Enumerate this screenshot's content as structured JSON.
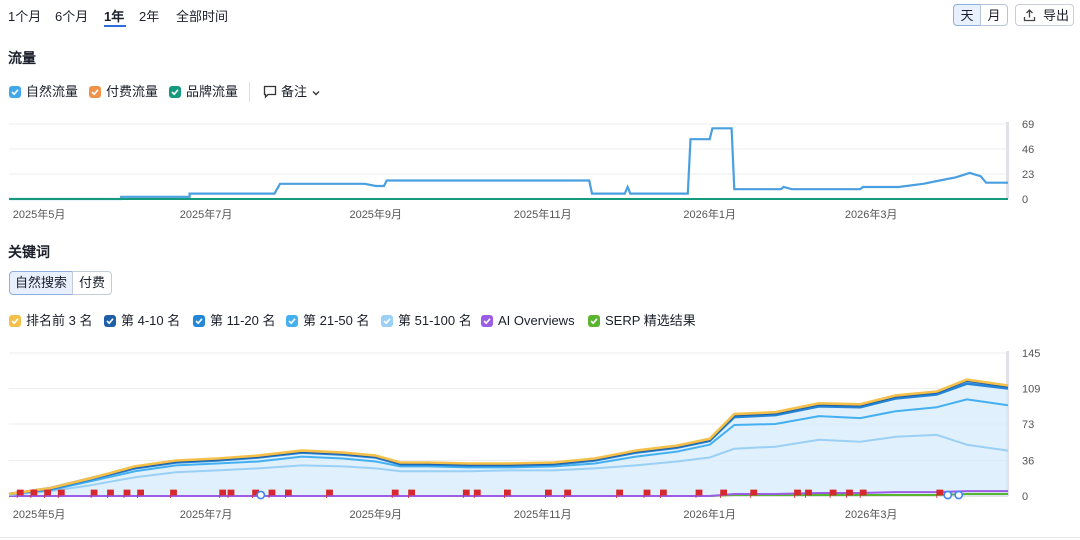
{
  "period_tabs": [
    "1个月",
    "6个月",
    "1年",
    "2年",
    "全部时间"
  ],
  "period_active": "1年",
  "view_toggle": {
    "day": "天",
    "month": "月",
    "active": "天"
  },
  "export_label": "导出",
  "traffic": {
    "title": "流量",
    "legend": [
      {
        "label": "自然流量",
        "color": "#41a9e8",
        "checked": true
      },
      {
        "label": "付费流量",
        "color": "#f0924a",
        "checked": true
      },
      {
        "label": "品牌流量",
        "color": "#169a7e",
        "checked": true
      }
    ],
    "notes_label": "备注",
    "y_ticks": [
      "69",
      "46",
      "23",
      "0"
    ],
    "x_ticks": [
      "2025年5月",
      "2025年7月",
      "2025年9月",
      "2025年11月",
      "2026年1月",
      "2026年3月"
    ]
  },
  "keywords": {
    "title": "关键词",
    "tabs": [
      "自然搜索",
      "付费"
    ],
    "active_tab": "自然搜索",
    "legend": [
      {
        "label": "排名前 3 名",
        "color": "#f5c04a",
        "checked": true
      },
      {
        "label": "第 4-10 名",
        "color": "#1e5fa8",
        "checked": true
      },
      {
        "label": "第 11-20 名",
        "color": "#2585d6",
        "checked": true
      },
      {
        "label": "第 21-50 名",
        "color": "#45b0f0",
        "checked": true
      },
      {
        "label": "第 51-100 名",
        "color": "#9ad0f5",
        "checked": true
      },
      {
        "label": "AI Overviews",
        "color": "#9b5de5",
        "checked": true
      },
      {
        "label": "SERP 精选结果",
        "color": "#5ab52e",
        "checked": true
      }
    ],
    "y_ticks": [
      "145",
      "109",
      "73",
      "36",
      "0"
    ],
    "x_ticks": [
      "2025年5月",
      "2025年7月",
      "2025年9月",
      "2025年11月",
      "2026年1月",
      "2026年3月"
    ]
  },
  "chart_data": [
    {
      "type": "line",
      "title": "流量",
      "x_unit": "date",
      "x_range": [
        "2025-04-20",
        "2026-04-20"
      ],
      "ylim": [
        0,
        69
      ],
      "grid": true,
      "series": [
        {
          "name": "自然流量",
          "color": "#4a9fe0",
          "points": [
            [
              "2025-04-20",
              0
            ],
            [
              "2025-05-31",
              0
            ],
            [
              "2025-05-31",
              2
            ],
            [
              "2025-06-25",
              2
            ],
            [
              "2025-06-25",
              5
            ],
            [
              "2025-07-26",
              5
            ],
            [
              "2025-07-28",
              14
            ],
            [
              "2025-08-28",
              14
            ],
            [
              "2025-09-01",
              12
            ],
            [
              "2025-09-04",
              12
            ],
            [
              "2025-09-05",
              17
            ],
            [
              "2025-11-18",
              17
            ],
            [
              "2025-11-19",
              5
            ],
            [
              "2025-12-01",
              5
            ],
            [
              "2025-12-02",
              11
            ],
            [
              "2025-12-03",
              5
            ],
            [
              "2025-12-24",
              5
            ],
            [
              "2025-12-25",
              55
            ],
            [
              "2026-01-01",
              55
            ],
            [
              "2026-01-02",
              65
            ],
            [
              "2026-01-09",
              65
            ],
            [
              "2026-01-10",
              9
            ],
            [
              "2026-01-27",
              9
            ],
            [
              "2026-01-28",
              11
            ],
            [
              "2026-01-31",
              9
            ],
            [
              "2026-02-25",
              9
            ],
            [
              "2026-02-26",
              11
            ],
            [
              "2026-03-11",
              11
            ],
            [
              "2026-03-20",
              14
            ],
            [
              "2026-03-26",
              17
            ],
            [
              "2026-04-01",
              20
            ],
            [
              "2026-04-06",
              24
            ],
            [
              "2026-04-10",
              21
            ],
            [
              "2026-04-12",
              15
            ],
            [
              "2026-04-20",
              15
            ]
          ]
        },
        {
          "name": "付费流量",
          "color": "#f0924a",
          "points": [
            [
              "2025-04-20",
              0
            ],
            [
              "2026-04-20",
              0
            ]
          ]
        },
        {
          "name": "品牌流量",
          "color": "#169a7e",
          "points": [
            [
              "2025-04-20",
              0
            ],
            [
              "2026-04-20",
              0
            ]
          ]
        }
      ]
    },
    {
      "type": "area",
      "title": "关键词",
      "x_unit": "date",
      "x_range": [
        "2025-04-20",
        "2026-04-20"
      ],
      "ylim": [
        0,
        145
      ],
      "grid": true,
      "x": [
        "2025-04-20",
        "2025-05-05",
        "2025-05-20",
        "2025-06-05",
        "2025-06-20",
        "2025-07-05",
        "2025-07-20",
        "2025-08-05",
        "2025-08-20",
        "2025-09-01",
        "2025-09-10",
        "2025-09-20",
        "2025-10-05",
        "2025-10-20",
        "2025-11-05",
        "2025-11-20",
        "2025-12-05",
        "2025-12-20",
        "2026-01-01",
        "2026-01-10",
        "2026-01-25",
        "2026-02-10",
        "2026-02-25",
        "2026-03-10",
        "2026-03-25",
        "2026-04-05",
        "2026-04-20"
      ],
      "series": [
        {
          "name": "排名前 3 名",
          "color": "#f5c04a",
          "values": [
            2,
            8,
            18,
            30,
            36,
            38,
            41,
            46,
            44,
            41,
            34,
            34,
            33,
            33,
            34,
            38,
            46,
            51,
            58,
            83,
            85,
            94,
            93,
            102,
            106,
            118,
            112
          ]
        },
        {
          "name": "第 4-10 名",
          "color": "#1e5fa8",
          "values": [
            2,
            8,
            18,
            29,
            35,
            37,
            40,
            45,
            43,
            40,
            33,
            33,
            32,
            32,
            33,
            37,
            45,
            50,
            57,
            82,
            84,
            93,
            92,
            101,
            105,
            117,
            111
          ]
        },
        {
          "name": "第 11-20 名",
          "color": "#2585d6",
          "values": [
            2,
            7,
            17,
            28,
            34,
            36,
            39,
            44,
            42,
            39,
            32,
            32,
            31,
            31,
            32,
            36,
            44,
            49,
            56,
            80,
            82,
            91,
            90,
            99,
            103,
            114,
            109
          ]
        },
        {
          "name": "第 21-50 名",
          "color": "#45b0f0",
          "values": [
            2,
            6,
            15,
            25,
            31,
            33,
            35,
            40,
            38,
            35,
            30,
            30,
            29,
            29,
            30,
            33,
            40,
            45,
            52,
            72,
            73,
            81,
            79,
            86,
            90,
            98,
            92
          ]
        },
        {
          "name": "第 51-100 名",
          "color": "#9ad0f5",
          "values": [
            1,
            5,
            11,
            19,
            24,
            26,
            28,
            31,
            30,
            28,
            25,
            25,
            25,
            26,
            26,
            28,
            31,
            35,
            39,
            48,
            50,
            57,
            55,
            60,
            62,
            52,
            46
          ]
        },
        {
          "name": "AI Overviews",
          "color": "#9b5de5",
          "values": [
            0,
            0,
            0,
            0,
            0,
            0,
            0,
            0,
            0,
            0,
            0,
            0,
            0,
            0,
            0,
            0,
            0,
            0,
            0,
            2,
            2,
            3,
            3,
            4,
            4,
            5,
            5
          ]
        },
        {
          "name": "SERP 精选结果",
          "color": "#5ab52e",
          "values": [
            0,
            0,
            0,
            0,
            0,
            0,
            0,
            0,
            0,
            0,
            0,
            0,
            0,
            0,
            0,
            0,
            0,
            0,
            0,
            1,
            1,
            1,
            1,
            1,
            1,
            2,
            2
          ]
        }
      ]
    }
  ]
}
